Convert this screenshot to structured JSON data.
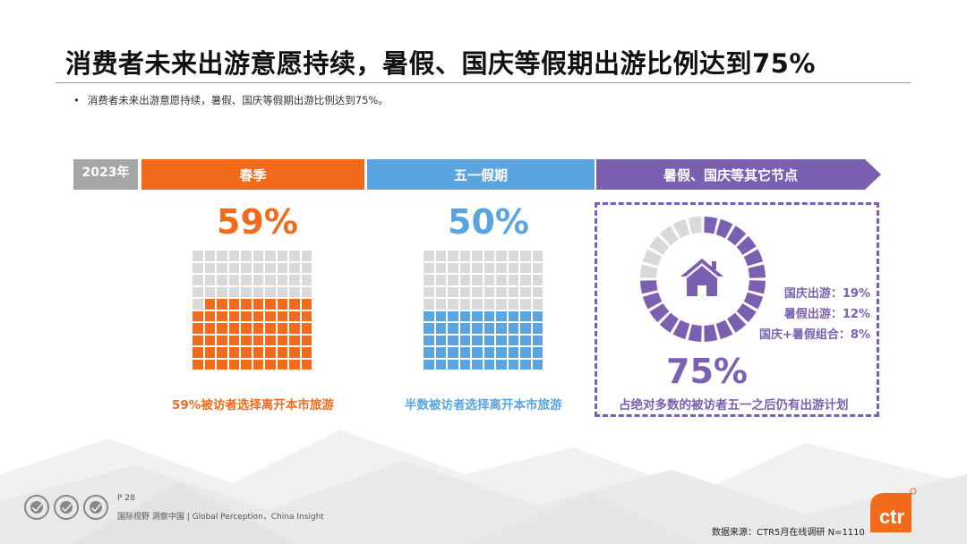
{
  "title": "消费者未来出游意愿持续，暑假、国庆等假期出游比例达到75%",
  "bullet": "消费者未来出游意愿持续，暑假、国庆等假期出游比例达到75%。",
  "bullet_marker": "•",
  "header": {
    "year": "2023年",
    "spring": "春季",
    "mayday": "五一假期",
    "others": "暑假、国庆等其它节点"
  },
  "spring": {
    "percent_label": "59%",
    "value": 59,
    "caption": "59%被访者选择离开本市旅游"
  },
  "mayday": {
    "percent_label": "50%",
    "value": 50,
    "caption": "半数被访者选择离开本市旅游"
  },
  "others": {
    "percent_label": "75%",
    "value": 75,
    "caption": "占绝对多数的被访者五一之后仍有出游计划",
    "stats": [
      "国庆出游：19%",
      "暑假出游：12%",
      "国庆+暑假组合：8%"
    ],
    "icon": "house-icon"
  },
  "footer": {
    "page": "P 28",
    "note": "国际视野 洞察中国 | Global Perception，China Insight",
    "source": "数据来源：CTR5月在线调研 N=1110",
    "logo_text": "ctr"
  },
  "colors": {
    "orange": "#f26b1d",
    "blue": "#5aa5e0",
    "purple": "#7b5fb0",
    "gray": "#d9d9d9"
  }
}
